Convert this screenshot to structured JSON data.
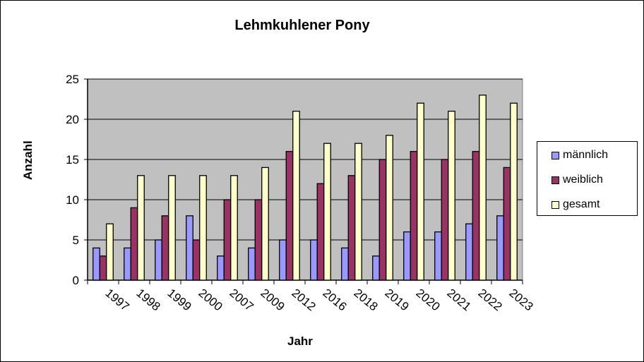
{
  "chart_data": {
    "type": "bar",
    "title": "Lehmkuhlener Pony",
    "xlabel": "Jahr",
    "ylabel": "Anzahl",
    "ylim": [
      0,
      25
    ],
    "yticks": [
      0,
      5,
      10,
      15,
      20,
      25
    ],
    "grid": true,
    "legend_position": "right",
    "categories": [
      "1997",
      "1998",
      "1999",
      "2000",
      "2007",
      "2009",
      "2012",
      "2016",
      "2018",
      "2019",
      "2020",
      "2021",
      "2022",
      "2023"
    ],
    "series": [
      {
        "name": "männlich",
        "color": "#9999FF",
        "values": [
          4,
          4,
          5,
          8,
          3,
          4,
          5,
          5,
          4,
          3,
          6,
          6,
          7,
          8
        ]
      },
      {
        "name": "weiblich",
        "color": "#993366",
        "values": [
          3,
          9,
          8,
          5,
          10,
          10,
          16,
          12,
          13,
          15,
          16,
          15,
          16,
          14
        ]
      },
      {
        "name": "gesamt",
        "color": "#FFFFCC",
        "values": [
          7,
          13,
          13,
          13,
          13,
          14,
          21,
          17,
          17,
          18,
          22,
          21,
          23,
          22
        ]
      }
    ]
  },
  "colors": {
    "plot_background": "#C0C0C0"
  }
}
